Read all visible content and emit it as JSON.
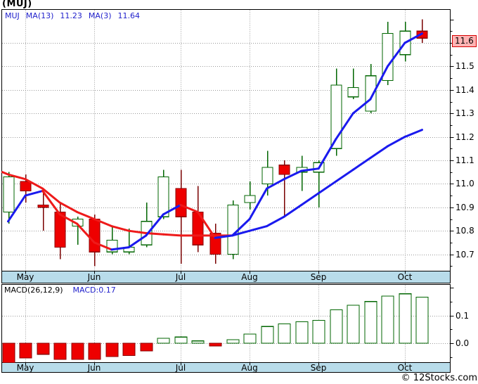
{
  "title": "(MUJ)",
  "legend": {
    "symbol": "MUJ",
    "ma13_label": "MA(13)",
    "ma13_value": "11.23",
    "ma3_label": "MA(3)",
    "ma3_value": "11.64"
  },
  "macd_header": {
    "label": "MACD(26,12,9)",
    "value_label": "MACD:0.17"
  },
  "footer": {
    "copyright": "© 12Stocks.com"
  },
  "axis": {
    "price_highlight": "11.6",
    "macd_tick_labels": [
      "0.1",
      "0.0"
    ],
    "months": [
      "May",
      "Jun",
      "Jul",
      "Aug",
      "Sep",
      "Oct"
    ]
  },
  "colors": {
    "grid": "#999999",
    "border": "#000000",
    "up_fill": "#ffffff",
    "up_stroke": "#006600",
    "down_fill": "#ee0000",
    "down_stroke": "#8b0000",
    "wick_up": "#006600",
    "wick_down": "#7a0000",
    "ma_up": "#1a1aee",
    "ma_down": "#ee1a1a",
    "strip_bg": "#b8dcea",
    "legend_text": "#2222cc",
    "highlight_bg": "#ffb3b3",
    "highlight_border": "#d40000",
    "axis_text": "#000000"
  },
  "chart_data": [
    {
      "type": "candlestick",
      "symbol": "MUJ",
      "months": [
        "May",
        "Jun",
        "Jul",
        "Aug",
        "Sep",
        "Oct"
      ],
      "month_start_indices": [
        1,
        5,
        10,
        14,
        18,
        23
      ],
      "ylim": [
        10.63,
        11.74
      ],
      "yticks": [
        11.6,
        11.5,
        11.4,
        11.3,
        11.2,
        11.1,
        11.0,
        10.9,
        10.8,
        10.7
      ],
      "ytick_labels": [
        "11.6",
        "11.5",
        "11.4",
        "11.3",
        "11.2",
        "11.1",
        "11.0",
        "10.9",
        "10.8",
        "10.7"
      ],
      "highlight_label": "11.6",
      "candles": [
        {
          "o": 10.88,
          "h": 11.05,
          "l": 10.83,
          "c": 11.03
        },
        {
          "o": 11.01,
          "h": 11.04,
          "l": 10.92,
          "c": 10.97
        },
        {
          "o": 10.91,
          "h": 10.97,
          "l": 10.8,
          "c": 10.9
        },
        {
          "o": 10.88,
          "h": 10.92,
          "l": 10.68,
          "c": 10.73
        },
        {
          "o": 10.82,
          "h": 10.86,
          "l": 10.74,
          "c": 10.85
        },
        {
          "o": 10.85,
          "h": 10.87,
          "l": 10.65,
          "c": 10.71
        },
        {
          "o": 10.71,
          "h": 10.82,
          "l": 10.7,
          "c": 10.76
        },
        {
          "o": 10.71,
          "h": 10.81,
          "l": 10.7,
          "c": 10.73
        },
        {
          "o": 10.74,
          "h": 10.92,
          "l": 10.73,
          "c": 10.84
        },
        {
          "o": 10.86,
          "h": 11.06,
          "l": 10.85,
          "c": 11.03
        },
        {
          "o": 10.98,
          "h": 11.06,
          "l": 10.66,
          "c": 10.86
        },
        {
          "o": 10.88,
          "h": 10.99,
          "l": 10.71,
          "c": 10.74
        },
        {
          "o": 10.79,
          "h": 10.83,
          "l": 10.66,
          "c": 10.7
        },
        {
          "o": 10.7,
          "h": 10.93,
          "l": 10.68,
          "c": 10.91
        },
        {
          "o": 10.92,
          "h": 11.01,
          "l": 10.89,
          "c": 10.95
        },
        {
          "o": 11.0,
          "h": 11.14,
          "l": 10.95,
          "c": 11.07
        },
        {
          "o": 11.08,
          "h": 11.1,
          "l": 10.86,
          "c": 11.04
        },
        {
          "o": 11.05,
          "h": 11.12,
          "l": 10.97,
          "c": 11.07
        },
        {
          "o": 11.05,
          "h": 11.1,
          "l": 10.9,
          "c": 11.09
        },
        {
          "o": 11.15,
          "h": 11.49,
          "l": 11.12,
          "c": 11.42
        },
        {
          "o": 11.37,
          "h": 11.49,
          "l": 11.36,
          "c": 11.41
        },
        {
          "o": 11.31,
          "h": 11.51,
          "l": 11.3,
          "c": 11.46
        },
        {
          "o": 11.44,
          "h": 11.69,
          "l": 11.42,
          "c": 11.64
        },
        {
          "o": 11.55,
          "h": 11.69,
          "l": 11.52,
          "c": 11.65
        },
        {
          "o": 11.65,
          "h": 11.7,
          "l": 11.6,
          "c": 11.62
        }
      ],
      "overlays": [
        {
          "name": "MA(13)",
          "current": 11.23,
          "edge_value": 11.05,
          "values": [
            11.04,
            11.02,
            10.98,
            10.92,
            10.88,
            10.85,
            10.82,
            10.8,
            10.79,
            10.785,
            10.78,
            10.78,
            10.78,
            10.78,
            10.8,
            10.82,
            10.86,
            10.91,
            10.96,
            11.01,
            11.06,
            11.11,
            11.16,
            11.2,
            11.23
          ]
        },
        {
          "name": "MA(3)",
          "current": 11.64,
          "values": [
            10.84,
            10.95,
            10.97,
            10.87,
            10.83,
            10.75,
            10.72,
            10.73,
            10.78,
            10.87,
            10.91,
            10.88,
            10.77,
            10.78,
            10.85,
            10.98,
            11.02,
            11.055,
            11.065,
            11.19,
            11.3,
            11.36,
            11.5,
            11.6,
            11.64
          ]
        }
      ]
    },
    {
      "type": "bar",
      "name": "MACD(26,12,9)",
      "current": 0.17,
      "ylim": [
        -0.068,
        0.21
      ],
      "yticks": [
        0.1,
        0.0
      ],
      "ytick_labels": [
        "0.1",
        "0.0"
      ],
      "values": [
        -0.07,
        -0.053,
        -0.04,
        -0.058,
        -0.058,
        -0.058,
        -0.048,
        -0.044,
        -0.028,
        0.018,
        0.022,
        0.008,
        -0.01,
        0.013,
        0.033,
        0.06,
        0.07,
        0.077,
        0.082,
        0.12,
        0.137,
        0.15,
        0.17,
        0.178,
        0.166
      ]
    }
  ]
}
